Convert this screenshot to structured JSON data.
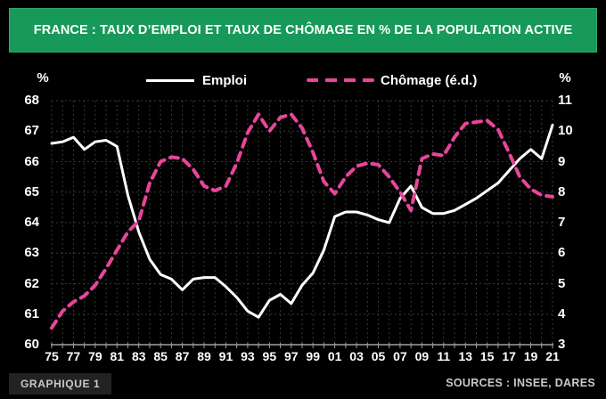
{
  "header": {
    "title": "FRANCE : TAUX D’EMPLOI ET TAUX DE CHÔMAGE EN % DE LA POPULATION ACTIVE"
  },
  "legend": {
    "emploi": "Emploi",
    "chomage": "Chômage (é.d.)"
  },
  "axes": {
    "left_unit": "%",
    "right_unit": "%",
    "left_ticks": [
      68,
      67,
      66,
      65,
      64,
      63,
      62,
      61,
      60
    ],
    "right_ticks": [
      11,
      10,
      9,
      8,
      7,
      6,
      5,
      4,
      3
    ],
    "x_tick_labels": [
      "75",
      "77",
      "79",
      "81",
      "83",
      "85",
      "87",
      "89",
      "91",
      "93",
      "95",
      "97",
      "99",
      "01",
      "03",
      "05",
      "07",
      "09",
      "11",
      "13",
      "15",
      "17",
      "19",
      "21"
    ]
  },
  "footer": {
    "badge": "GRAPHIQUE 1",
    "sources": "SOURCES : INSEE, DARES"
  },
  "colors": {
    "background": "#000000",
    "banner_green": "#17995a",
    "banner_border": "#2ea76d",
    "emploi_line": "#ffffff",
    "chomage_pink": "#e8459b",
    "grid": "#383838",
    "axis": "#a0a0a0",
    "badge_bg": "#222222",
    "muted_text": "#c9c9c9"
  },
  "chart_data": {
    "type": "line",
    "title": "FRANCE : TAUX D’EMPLOI ET TAUX DE CHÔMAGE EN % DE LA POPULATION ACTIVE",
    "x": [
      1975,
      1976,
      1977,
      1978,
      1979,
      1980,
      1981,
      1982,
      1983,
      1984,
      1985,
      1986,
      1987,
      1988,
      1989,
      1990,
      1991,
      1992,
      1993,
      1994,
      1995,
      1996,
      1997,
      1998,
      1999,
      2000,
      2001,
      2002,
      2003,
      2004,
      2005,
      2006,
      2007,
      2008,
      2009,
      2010,
      2011,
      2012,
      2013,
      2014,
      2015,
      2016,
      2017,
      2018,
      2019,
      2020,
      2021
    ],
    "series": [
      {
        "name": "Emploi",
        "axis": "left",
        "style": "solid",
        "color": "#ffffff",
        "values": [
          66.6,
          66.65,
          66.8,
          66.4,
          66.65,
          66.7,
          66.5,
          64.9,
          63.7,
          62.8,
          62.3,
          62.15,
          61.8,
          62.15,
          62.2,
          62.2,
          61.9,
          61.55,
          61.1,
          60.9,
          61.45,
          61.65,
          61.35,
          61.95,
          62.35,
          63.1,
          64.2,
          64.35,
          64.35,
          64.25,
          64.1,
          64.0,
          64.8,
          65.2,
          64.5,
          64.3,
          64.3,
          64.4,
          64.6,
          64.8,
          65.05,
          65.3,
          65.7,
          66.1,
          66.4,
          66.1,
          67.2
        ]
      },
      {
        "name": "Chômage (é.d.)",
        "axis": "right",
        "style": "dashed",
        "color": "#e8459b",
        "values": [
          3.55,
          4.1,
          4.4,
          4.6,
          4.95,
          5.5,
          6.1,
          6.7,
          7.05,
          8.3,
          9.0,
          9.15,
          9.1,
          8.75,
          8.2,
          8.05,
          8.2,
          8.95,
          9.95,
          10.55,
          10.0,
          10.45,
          10.55,
          10.1,
          9.3,
          8.35,
          7.95,
          8.5,
          8.85,
          8.95,
          8.9,
          8.5,
          8.0,
          7.4,
          9.1,
          9.25,
          9.2,
          9.8,
          10.25,
          10.3,
          10.35,
          10.05,
          9.3,
          8.5,
          8.1,
          7.9,
          7.85
        ]
      }
    ],
    "left_ylim": [
      60,
      68
    ],
    "right_ylim": [
      3,
      11
    ],
    "grid": true,
    "legend_position": "top"
  }
}
